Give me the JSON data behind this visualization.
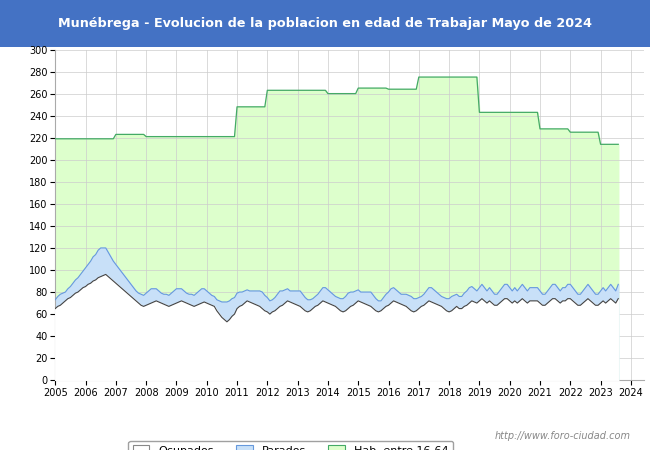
{
  "title": "Munébrega - Evolucion de la poblacion en edad de Trabajar Mayo de 2024",
  "title_bg_color": "#4472C4",
  "title_text_color": "#FFFFFF",
  "ylim": [
    0,
    300
  ],
  "yticks": [
    0,
    20,
    40,
    60,
    80,
    100,
    120,
    140,
    160,
    180,
    200,
    220,
    240,
    260,
    280,
    300
  ],
  "watermark": "http://www.foro-ciudad.com",
  "hab_yearly": [
    219,
    219,
    223,
    221,
    221,
    221,
    248,
    263,
    263,
    260,
    265,
    264,
    275,
    275,
    243,
    243,
    228,
    225,
    214,
    213
  ],
  "hab_months": [
    12,
    12,
    12,
    12,
    12,
    12,
    12,
    12,
    12,
    12,
    12,
    12,
    12,
    12,
    12,
    12,
    12,
    12,
    12,
    5
  ],
  "ocupados_monthly": [
    65,
    67,
    68,
    70,
    72,
    74,
    75,
    77,
    79,
    80,
    82,
    84,
    85,
    87,
    88,
    90,
    91,
    93,
    94,
    95,
    96,
    94,
    92,
    90,
    88,
    86,
    84,
    82,
    80,
    78,
    76,
    74,
    72,
    70,
    68,
    67,
    68,
    69,
    70,
    71,
    72,
    71,
    70,
    69,
    68,
    67,
    68,
    69,
    70,
    71,
    72,
    71,
    70,
    69,
    68,
    67,
    68,
    69,
    70,
    71,
    70,
    69,
    68,
    67,
    63,
    60,
    57,
    55,
    53,
    55,
    58,
    60,
    65,
    67,
    68,
    70,
    72,
    71,
    70,
    69,
    68,
    67,
    65,
    63,
    62,
    60,
    62,
    63,
    65,
    67,
    68,
    70,
    72,
    71,
    70,
    69,
    68,
    67,
    65,
    63,
    62,
    63,
    65,
    67,
    68,
    70,
    72,
    71,
    70,
    69,
    68,
    67,
    65,
    63,
    62,
    63,
    65,
    67,
    68,
    70,
    72,
    71,
    70,
    69,
    68,
    67,
    65,
    63,
    62,
    63,
    65,
    67,
    68,
    70,
    72,
    71,
    70,
    69,
    68,
    67,
    65,
    63,
    62,
    63,
    65,
    67,
    68,
    70,
    72,
    71,
    70,
    69,
    68,
    67,
    65,
    63,
    62,
    63,
    65,
    67,
    65,
    65,
    67,
    68,
    70,
    72,
    71,
    70,
    72,
    74,
    72,
    70,
    72,
    70,
    68,
    68,
    70,
    72,
    74,
    74,
    72,
    70,
    72,
    70,
    72,
    74,
    72,
    70,
    72,
    72,
    72,
    72,
    70,
    68,
    68,
    70,
    72,
    74,
    74,
    72,
    70,
    72,
    72,
    74,
    74,
    72,
    70,
    68,
    68,
    70,
    72,
    74,
    72,
    70,
    68,
    68,
    70,
    72,
    70,
    72,
    74,
    72,
    70,
    74
  ],
  "parados_monthly": [
    8,
    9,
    10,
    9,
    8,
    9,
    10,
    11,
    12,
    13,
    14,
    15,
    17,
    18,
    20,
    22,
    23,
    25,
    26,
    25,
    24,
    22,
    20,
    18,
    17,
    16,
    15,
    14,
    13,
    12,
    11,
    10,
    9,
    9,
    10,
    10,
    11,
    12,
    13,
    12,
    11,
    10,
    9,
    9,
    10,
    10,
    11,
    12,
    13,
    12,
    11,
    10,
    9,
    9,
    10,
    10,
    11,
    12,
    13,
    12,
    11,
    10,
    9,
    9,
    10,
    12,
    14,
    16,
    18,
    17,
    16,
    15,
    14,
    13,
    12,
    11,
    10,
    10,
    11,
    12,
    13,
    14,
    15,
    14,
    13,
    12,
    11,
    12,
    13,
    14,
    13,
    12,
    11,
    10,
    11,
    12,
    13,
    14,
    13,
    12,
    11,
    10,
    9,
    9,
    10,
    11,
    12,
    13,
    12,
    11,
    10,
    9,
    10,
    11,
    12,
    13,
    14,
    13,
    12,
    11,
    10,
    9,
    10,
    11,
    12,
    13,
    12,
    11,
    10,
    9,
    10,
    11,
    12,
    13,
    12,
    11,
    10,
    9,
    10,
    11,
    12,
    13,
    12,
    11,
    10,
    9,
    10,
    11,
    12,
    13,
    12,
    11,
    10,
    9,
    10,
    11,
    12,
    13,
    12,
    11,
    11,
    11,
    12,
    13,
    14,
    13,
    12,
    11,
    12,
    13,
    12,
    11,
    12,
    11,
    10,
    10,
    11,
    12,
    13,
    13,
    12,
    11,
    12,
    11,
    12,
    13,
    12,
    11,
    12,
    12,
    12,
    12,
    11,
    10,
    10,
    11,
    12,
    13,
    13,
    12,
    11,
    12,
    12,
    13,
    13,
    12,
    11,
    10,
    10,
    11,
    12,
    13,
    12,
    11,
    10,
    10,
    11,
    12,
    11,
    12,
    13,
    12,
    11,
    13
  ],
  "fig_bg": "#FFFFFF",
  "plot_bg": "#FFFFFF",
  "green_fill": "#DDFFCC",
  "blue_fill": "#C8E0F8",
  "white_fill": "#FFFFFF",
  "green_line": "#44AA66",
  "blue_line": "#6699DD",
  "dark_line": "#444444"
}
